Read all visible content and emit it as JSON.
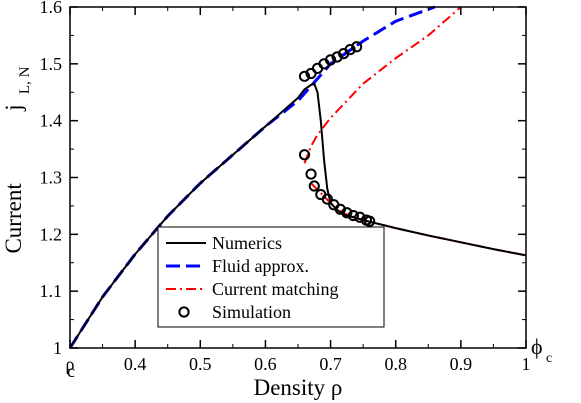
{
  "chart_data": {
    "type": "line",
    "xlabel": "Density ρ",
    "ylabel_main": "Current",
    "ylabel_symbol": "j",
    "ylabel_subscript": "L, N",
    "xlim": [
      0.3,
      1.0
    ],
    "ylim": [
      1.0,
      1.6
    ],
    "x_ticks": [
      {
        "value": 0.3,
        "main": "ρ",
        "sub": "c"
      },
      {
        "value": 0.4,
        "main": "0.4",
        "sub": ""
      },
      {
        "value": 0.5,
        "main": "0.5",
        "sub": ""
      },
      {
        "value": 0.6,
        "main": "0.6",
        "sub": ""
      },
      {
        "value": 0.7,
        "main": "0.7",
        "sub": ""
      },
      {
        "value": 0.8,
        "main": "0.8",
        "sub": ""
      },
      {
        "value": 0.9,
        "main": "0.9",
        "sub": ""
      },
      {
        "value": 1.0,
        "main": "1",
        "sub": ""
      }
    ],
    "y_ticks": [
      "1",
      "1.1",
      "1.2",
      "1.3",
      "1.4",
      "1.5",
      "1.6"
    ],
    "right_edge_label": {
      "main": "ϕ",
      "sub": "c"
    },
    "grid": false,
    "legend_position": "bottom-left",
    "series": [
      {
        "name": "Numerics",
        "style": "solid",
        "color": "#000000",
        "points": [
          [
            0.3,
            1.0
          ],
          [
            0.35,
            1.09
          ],
          [
            0.4,
            1.165
          ],
          [
            0.45,
            1.232
          ],
          [
            0.5,
            1.29
          ],
          [
            0.55,
            1.34
          ],
          [
            0.6,
            1.39
          ],
          [
            0.63,
            1.42
          ],
          [
            0.65,
            1.44
          ],
          [
            0.66,
            1.455
          ],
          [
            0.67,
            1.463
          ],
          [
            0.675,
            1.465
          ],
          [
            0.68,
            1.45
          ],
          [
            0.685,
            1.4
          ],
          [
            0.69,
            1.33
          ],
          [
            0.695,
            1.28
          ],
          [
            0.7,
            1.255
          ],
          [
            0.71,
            1.243
          ],
          [
            0.72,
            1.235
          ],
          [
            0.75,
            1.225
          ],
          [
            0.8,
            1.211
          ],
          [
            0.85,
            1.198
          ],
          [
            0.9,
            1.186
          ],
          [
            0.95,
            1.174
          ],
          [
            1.0,
            1.163
          ]
        ]
      },
      {
        "name": "Fluid approx.",
        "style": "dashed",
        "color": "#0000ff",
        "points": [
          [
            0.3,
            1.0
          ],
          [
            0.35,
            1.09
          ],
          [
            0.4,
            1.165
          ],
          [
            0.45,
            1.232
          ],
          [
            0.5,
            1.29
          ],
          [
            0.55,
            1.34
          ],
          [
            0.6,
            1.39
          ],
          [
            0.65,
            1.435
          ],
          [
            0.7,
            1.5
          ],
          [
            0.75,
            1.54
          ],
          [
            0.8,
            1.575
          ],
          [
            0.86,
            1.6
          ]
        ]
      },
      {
        "name": "Current matching",
        "style": "dash-dot",
        "color": "#ff0000",
        "points": [
          [
            0.66,
            1.325
          ],
          [
            0.67,
            1.355
          ],
          [
            0.68,
            1.375
          ],
          [
            0.7,
            1.405
          ],
          [
            0.75,
            1.465
          ],
          [
            0.8,
            1.51
          ],
          [
            0.85,
            1.55
          ],
          [
            0.9,
            1.6
          ]
        ],
        "lower_points": [
          [
            0.67,
            1.29
          ],
          [
            0.7,
            1.255
          ],
          [
            0.72,
            1.237
          ],
          [
            0.75,
            1.225
          ],
          [
            0.8,
            1.211
          ],
          [
            0.85,
            1.198
          ],
          [
            0.9,
            1.186
          ],
          [
            0.95,
            1.174
          ],
          [
            1.0,
            1.163
          ]
        ]
      },
      {
        "name": "Simulation",
        "style": "markers",
        "color": "#000000",
        "points": [
          [
            0.66,
            1.478
          ],
          [
            0.67,
            1.483
          ],
          [
            0.68,
            1.492
          ],
          [
            0.69,
            1.5
          ],
          [
            0.7,
            1.507
          ],
          [
            0.71,
            1.512
          ],
          [
            0.72,
            1.518
          ],
          [
            0.73,
            1.525
          ],
          [
            0.74,
            1.53
          ],
          [
            0.66,
            1.34
          ],
          [
            0.67,
            1.306
          ],
          [
            0.675,
            1.285
          ],
          [
            0.685,
            1.27
          ],
          [
            0.695,
            1.262
          ],
          [
            0.705,
            1.252
          ],
          [
            0.715,
            1.244
          ],
          [
            0.725,
            1.238
          ],
          [
            0.735,
            1.233
          ],
          [
            0.745,
            1.23
          ],
          [
            0.755,
            1.225
          ],
          [
            0.76,
            1.223
          ]
        ]
      }
    ]
  }
}
